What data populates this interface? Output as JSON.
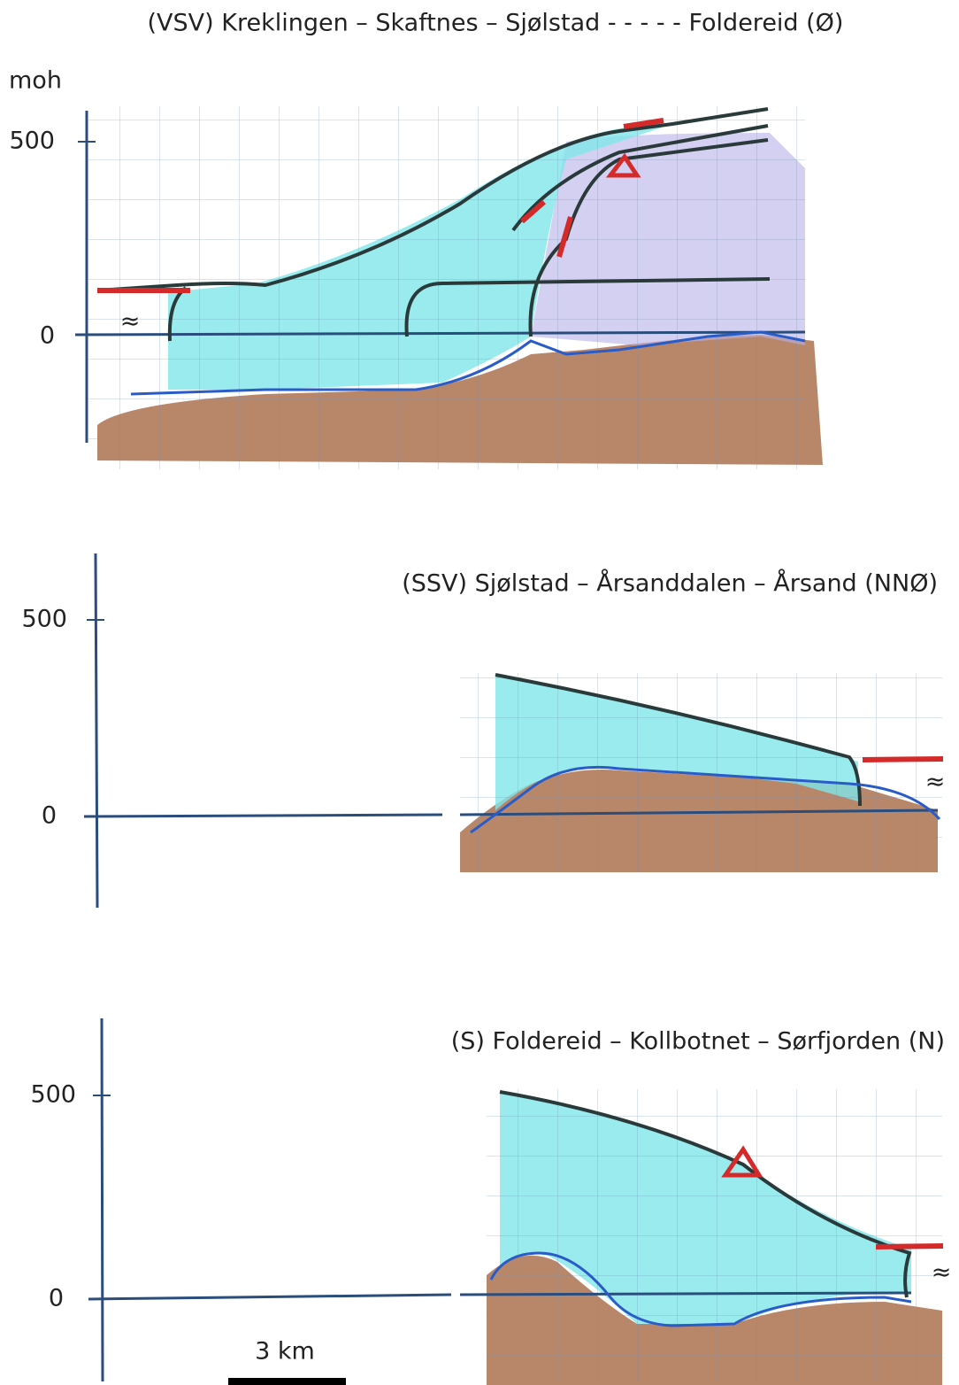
{
  "unit_label": "moh",
  "panels": [
    {
      "title": "(VSV) Kreklingen – Skaftnes – Sjølstad - - - - - Foldereid (Ø)",
      "ticks": [
        500,
        0
      ],
      "break_symbol": "≈"
    },
    {
      "title": "(SSV) Sjølstad – Årsanddalen – Årsand (NNØ)",
      "ticks": [
        500,
        0
      ],
      "break_symbol": "≈"
    },
    {
      "title": "(S) Foldereid – Kollbotnet – Sørfjorden (N)",
      "ticks": [
        500,
        0
      ],
      "break_symbol": "≈"
    }
  ],
  "scale_label": "3 km"
}
